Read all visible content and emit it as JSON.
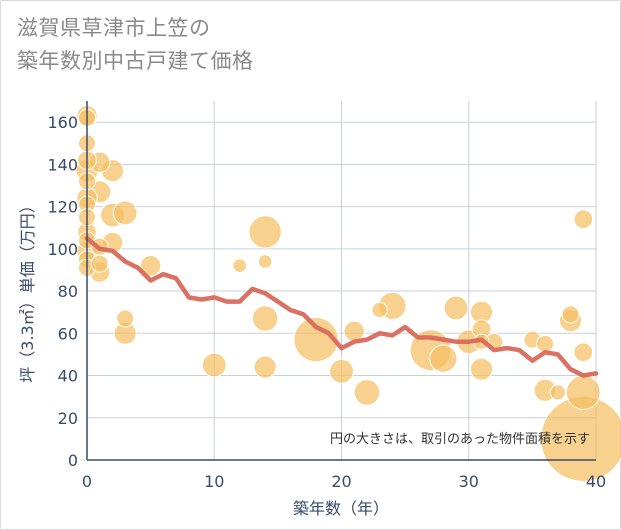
{
  "chart_data": {
    "type": "scatter",
    "title_lines": [
      "滋賀県草津市上笠の",
      "築年数別中古戸建て価格"
    ],
    "xlabel": "築年数（年）",
    "ylabel": "坪（3.3㎡）単価（万円）",
    "xlim": [
      0,
      40
    ],
    "ylim": [
      0,
      170
    ],
    "xticks": [
      0,
      10,
      20,
      30,
      40
    ],
    "yticks": [
      0,
      20,
      40,
      60,
      80,
      100,
      120,
      140,
      160
    ],
    "grid": true,
    "note": "円の大きさは、取引のあった物件面積を示す",
    "colors": {
      "bubble": "#f5bf62",
      "line": "#d9695a",
      "grid": "#c8d0dc",
      "axis": "#3a4a6a"
    },
    "scatter_points": [
      {
        "x": 0,
        "y": 163,
        "size": 1.2
      },
      {
        "x": 0,
        "y": 162,
        "size": 1.0
      },
      {
        "x": 0,
        "y": 150,
        "size": 1.0
      },
      {
        "x": 0,
        "y": 142,
        "size": 1.1
      },
      {
        "x": 0,
        "y": 137,
        "size": 1.3
      },
      {
        "x": 0,
        "y": 132,
        "size": 1.0
      },
      {
        "x": 0,
        "y": 124,
        "size": 1.2
      },
      {
        "x": 0,
        "y": 121,
        "size": 1.0
      },
      {
        "x": 0,
        "y": 115,
        "size": 1.0
      },
      {
        "x": 0,
        "y": 108,
        "size": 1.1
      },
      {
        "x": 0,
        "y": 104,
        "size": 1.0
      },
      {
        "x": 0,
        "y": 99,
        "size": 1.2
      },
      {
        "x": 0,
        "y": 95,
        "size": 1.0
      },
      {
        "x": 0,
        "y": 91,
        "size": 1.0
      },
      {
        "x": 1,
        "y": 141,
        "size": 1.2
      },
      {
        "x": 1,
        "y": 127,
        "size": 1.3
      },
      {
        "x": 1,
        "y": 101,
        "size": 1.0
      },
      {
        "x": 1,
        "y": 93,
        "size": 1.0
      },
      {
        "x": 1,
        "y": 89,
        "size": 1.2
      },
      {
        "x": 2,
        "y": 137,
        "size": 1.3
      },
      {
        "x": 2,
        "y": 116,
        "size": 1.4
      },
      {
        "x": 2,
        "y": 103,
        "size": 1.2
      },
      {
        "x": 3,
        "y": 117,
        "size": 1.4
      },
      {
        "x": 3,
        "y": 67,
        "size": 1.0
      },
      {
        "x": 3,
        "y": 60,
        "size": 1.3
      },
      {
        "x": 5,
        "y": 92,
        "size": 1.2
      },
      {
        "x": 10,
        "y": 45,
        "size": 1.4
      },
      {
        "x": 12,
        "y": 92,
        "size": 0.8
      },
      {
        "x": 14,
        "y": 108,
        "size": 1.9
      },
      {
        "x": 14,
        "y": 94,
        "size": 0.8
      },
      {
        "x": 14,
        "y": 67,
        "size": 1.5
      },
      {
        "x": 14,
        "y": 44,
        "size": 1.3
      },
      {
        "x": 18,
        "y": 57,
        "size": 2.6
      },
      {
        "x": 20,
        "y": 42,
        "size": 1.4
      },
      {
        "x": 21,
        "y": 61,
        "size": 1.2
      },
      {
        "x": 22,
        "y": 32,
        "size": 1.5
      },
      {
        "x": 23,
        "y": 71,
        "size": 0.9
      },
      {
        "x": 24,
        "y": 73,
        "size": 1.6
      },
      {
        "x": 27,
        "y": 52,
        "size": 2.4
      },
      {
        "x": 28,
        "y": 48,
        "size": 1.6
      },
      {
        "x": 29,
        "y": 72,
        "size": 1.4
      },
      {
        "x": 30,
        "y": 56,
        "size": 1.4
      },
      {
        "x": 31,
        "y": 70,
        "size": 1.3
      },
      {
        "x": 31,
        "y": 62,
        "size": 1.1
      },
      {
        "x": 31,
        "y": 56,
        "size": 0.9
      },
      {
        "x": 31,
        "y": 43,
        "size": 1.3
      },
      {
        "x": 32,
        "y": 56,
        "size": 1.0
      },
      {
        "x": 35,
        "y": 57,
        "size": 1.0
      },
      {
        "x": 36,
        "y": 55,
        "size": 1.0
      },
      {
        "x": 36,
        "y": 33,
        "size": 1.3
      },
      {
        "x": 37,
        "y": 32,
        "size": 0.9
      },
      {
        "x": 38,
        "y": 69,
        "size": 1.0
      },
      {
        "x": 38,
        "y": 66,
        "size": 1.3
      },
      {
        "x": 39,
        "y": 114,
        "size": 1.1
      },
      {
        "x": 39,
        "y": 51,
        "size": 1.1
      },
      {
        "x": 39,
        "y": 32,
        "size": 2.0
      },
      {
        "x": 39,
        "y": 10,
        "size": 5.0
      }
    ],
    "trend_line": {
      "x": [
        0,
        1,
        2,
        3,
        4,
        5,
        6,
        7,
        8,
        9,
        10,
        11,
        12,
        13,
        14,
        15,
        16,
        17,
        18,
        19,
        20,
        21,
        22,
        23,
        24,
        25,
        26,
        27,
        28,
        29,
        30,
        31,
        32,
        33,
        34,
        35,
        36,
        37,
        38,
        39,
        40
      ],
      "y": [
        105,
        100,
        99,
        94,
        91,
        85,
        88,
        86,
        77,
        76,
        77,
        75,
        75,
        81,
        79,
        75,
        71,
        69,
        63,
        60,
        53,
        56,
        57,
        60,
        59,
        63,
        58,
        58,
        57,
        56,
        56,
        57,
        52,
        53,
        52,
        47,
        51,
        50,
        43,
        40,
        41
      ]
    }
  }
}
